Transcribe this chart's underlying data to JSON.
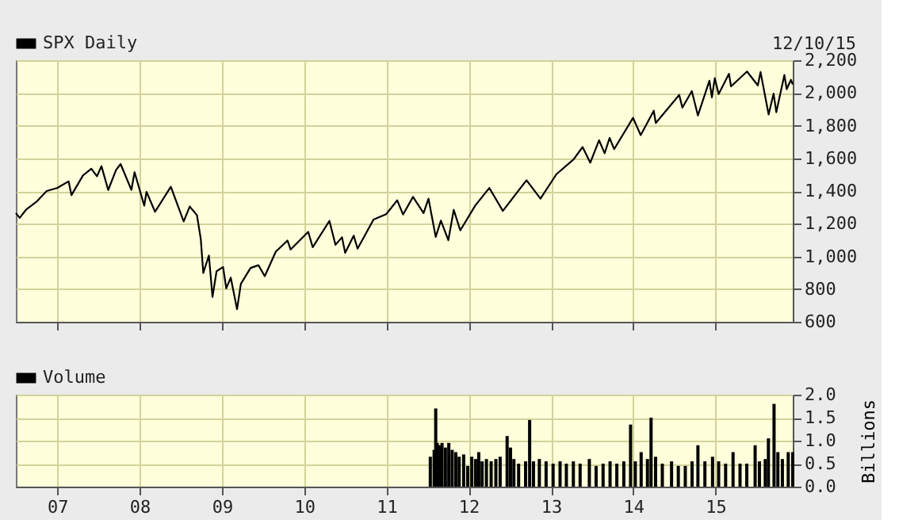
{
  "chart_data": [
    {
      "type": "line",
      "legend": "top left",
      "grid": true,
      "tick_labels": "y",
      "annotations": [
        "12/10/15"
      ],
      "xlim": [
        "2006-07-01",
        "2015-12-10"
      ],
      "xticks": [
        {
          "value": "2007",
          "label": null
        },
        {
          "value": "2008",
          "label": null
        },
        {
          "value": "2009",
          "label": null
        },
        {
          "value": "2010",
          "label": null
        },
        {
          "value": "2011",
          "label": null
        },
        {
          "value": "2012",
          "label": null
        },
        {
          "value": "2013",
          "label": null
        },
        {
          "value": "2014",
          "label": null
        },
        {
          "value": "2015",
          "label": null
        }
      ],
      "ylim": [
        600,
        2200
      ],
      "yticks": [
        {
          "value": 600,
          "label": "600"
        },
        {
          "value": 800,
          "label": "800"
        },
        {
          "value": 1000,
          "label": "1,000"
        },
        {
          "value": 1200,
          "label": "1,200"
        },
        {
          "value": 1400,
          "label": "1,400"
        },
        {
          "value": 1600,
          "label": "1,600"
        },
        {
          "value": 1800,
          "label": "1,800"
        },
        {
          "value": 2000,
          "label": "2,000"
        },
        {
          "value": 2200,
          "label": "2,200"
        }
      ],
      "series": [
        {
          "name": "SPX Daily",
          "color": "#000000",
          "x": [
            "2006-07-01",
            "2006-07-18",
            "2006-08-15",
            "2006-10-01",
            "2006-11-15",
            "2006-12-31",
            "2007-02-20",
            "2007-03-05",
            "2007-04-25",
            "2007-06-01",
            "2007-06-26",
            "2007-07-16",
            "2007-08-15",
            "2007-09-19",
            "2007-10-09",
            "2007-11-26",
            "2007-12-10",
            "2008-01-22",
            "2008-02-01",
            "2008-03-10",
            "2008-05-19",
            "2008-07-15",
            "2008-08-11",
            "2008-09-12",
            "2008-09-29",
            "2008-10-10",
            "2008-11-04",
            "2008-11-20",
            "2008-12-08",
            "2009-01-06",
            "2009-01-20",
            "2009-02-09",
            "2009-03-09",
            "2009-03-26",
            "2009-05-08",
            "2009-06-12",
            "2009-07-10",
            "2009-08-28",
            "2009-10-19",
            "2009-11-02",
            "2010-01-19",
            "2010-02-08",
            "2010-04-23",
            "2010-05-20",
            "2010-06-18",
            "2010-07-02",
            "2010-08-09",
            "2010-08-26",
            "2010-11-05",
            "2010-12-31",
            "2011-02-18",
            "2011-03-16",
            "2011-04-29",
            "2011-06-15",
            "2011-07-07",
            "2011-08-08",
            "2011-08-31",
            "2011-10-03",
            "2011-10-27",
            "2011-11-25",
            "2012-01-31",
            "2012-04-02",
            "2012-06-01",
            "2012-09-14",
            "2012-11-15",
            "2013-01-25",
            "2013-04-11",
            "2013-05-21",
            "2013-06-24",
            "2013-08-02",
            "2013-08-27",
            "2013-09-18",
            "2013-10-08",
            "2013-12-31",
            "2014-02-03",
            "2014-04-02",
            "2014-04-11",
            "2014-07-24",
            "2014-08-07",
            "2014-09-18",
            "2014-10-15",
            "2014-12-05",
            "2014-12-16",
            "2014-12-29",
            "2015-01-15",
            "2015-03-02",
            "2015-03-11",
            "2015-05-21",
            "2015-07-08",
            "2015-07-20",
            "2015-08-25",
            "2015-09-16",
            "2015-09-28",
            "2015-11-03",
            "2015-11-13",
            "2015-12-02",
            "2015-12-10"
          ],
          "values": [
            1265,
            1236,
            1285,
            1335,
            1400,
            1418,
            1459,
            1375,
            1495,
            1536,
            1490,
            1552,
            1406,
            1529,
            1565,
            1407,
            1515,
            1310,
            1395,
            1273,
            1426,
            1214,
            1305,
            1252,
            1106,
            899,
            1005,
            752,
            909,
            935,
            805,
            870,
            677,
            832,
            929,
            946,
            879,
            1029,
            1097,
            1042,
            1150,
            1056,
            1217,
            1071,
            1117,
            1022,
            1127,
            1047,
            1225,
            1258,
            1343,
            1256,
            1364,
            1265,
            1353,
            1119,
            1219,
            1099,
            1285,
            1159,
            1312,
            1419,
            1278,
            1466,
            1353,
            1503,
            1593,
            1669,
            1573,
            1710,
            1631,
            1725,
            1656,
            1848,
            1742,
            1891,
            1816,
            1988,
            1910,
            2011,
            1862,
            2075,
            1973,
            2090,
            1993,
            2117,
            2040,
            2131,
            2046,
            2128,
            1868,
            1996,
            1882,
            2110,
            2023,
            2080,
            2052
          ]
        }
      ]
    },
    {
      "type": "bar",
      "legend": "top left",
      "grid": true,
      "ylabel": "Billions",
      "xlim": [
        "2006-07-01",
        "2015-12-10"
      ],
      "xticks": [
        {
          "value": "2007",
          "label": "07"
        },
        {
          "value": "2008",
          "label": "08"
        },
        {
          "value": "2009",
          "label": "09"
        },
        {
          "value": "2010",
          "label": "10"
        },
        {
          "value": "2011",
          "label": "11"
        },
        {
          "value": "2012",
          "label": "12"
        },
        {
          "value": "2013",
          "label": "13"
        },
        {
          "value": "2014",
          "label": "14"
        },
        {
          "value": "2015",
          "label": "15"
        }
      ],
      "ylim": [
        0,
        2
      ],
      "yticks": [
        {
          "value": 0,
          "label": "0.0"
        },
        {
          "value": 0.5,
          "label": "0.5"
        },
        {
          "value": 1,
          "label": "1.0"
        },
        {
          "value": 1.5,
          "label": "1.5"
        },
        {
          "value": 2,
          "label": "2.0"
        }
      ],
      "series": [
        {
          "name": "Volume",
          "color": "#000000",
          "x": [
            "2011-07-15",
            "2011-08-01",
            "2011-08-08",
            "2011-08-15",
            "2011-08-25",
            "2011-09-05",
            "2011-09-20",
            "2011-10-05",
            "2011-10-20",
            "2011-11-05",
            "2011-11-20",
            "2011-12-10",
            "2011-12-28",
            "2012-01-15",
            "2012-02-01",
            "2012-02-15",
            "2012-03-01",
            "2012-03-20",
            "2012-04-10",
            "2012-05-01",
            "2012-05-20",
            "2012-06-20",
            "2012-07-05",
            "2012-07-20",
            "2012-08-10",
            "2012-09-10",
            "2012-09-28",
            "2012-10-15",
            "2012-11-10",
            "2012-12-10",
            "2013-01-10",
            "2013-02-10",
            "2013-03-10",
            "2013-04-10",
            "2013-05-10",
            "2013-06-20",
            "2013-07-20",
            "2013-08-20",
            "2013-09-20",
            "2013-10-20",
            "2013-11-20",
            "2013-12-20",
            "2014-01-10",
            "2014-02-05",
            "2014-03-05",
            "2014-03-21",
            "2014-04-10",
            "2014-05-10",
            "2014-06-20",
            "2014-07-20",
            "2014-08-20",
            "2014-09-19",
            "2014-10-15",
            "2014-11-15",
            "2014-12-19",
            "2015-01-15",
            "2015-02-15",
            "2015-03-20",
            "2015-04-20",
            "2015-05-20",
            "2015-06-26",
            "2015-07-15",
            "2015-08-10",
            "2015-08-24",
            "2015-09-18",
            "2015-10-05",
            "2015-10-25",
            "2015-11-20",
            "2015-12-10"
          ],
          "values": [
            0.65,
            0.8,
            1.7,
            0.95,
            0.9,
            0.95,
            0.85,
            0.95,
            0.8,
            0.75,
            0.65,
            0.7,
            0.45,
            0.65,
            0.6,
            0.75,
            0.55,
            0.6,
            0.55,
            0.6,
            0.65,
            1.1,
            0.85,
            0.6,
            0.5,
            0.55,
            1.45,
            0.55,
            0.6,
            0.55,
            0.5,
            0.55,
            0.5,
            0.55,
            0.5,
            0.6,
            0.45,
            0.5,
            0.55,
            0.5,
            0.55,
            1.35,
            0.55,
            0.75,
            0.6,
            1.5,
            0.65,
            0.5,
            0.55,
            0.45,
            0.45,
            0.55,
            0.9,
            0.55,
            0.65,
            0.55,
            0.5,
            0.75,
            0.5,
            0.5,
            0.9,
            0.55,
            0.6,
            1.05,
            1.8,
            0.75,
            0.6,
            0.75,
            0.75
          ]
        }
      ]
    }
  ]
}
